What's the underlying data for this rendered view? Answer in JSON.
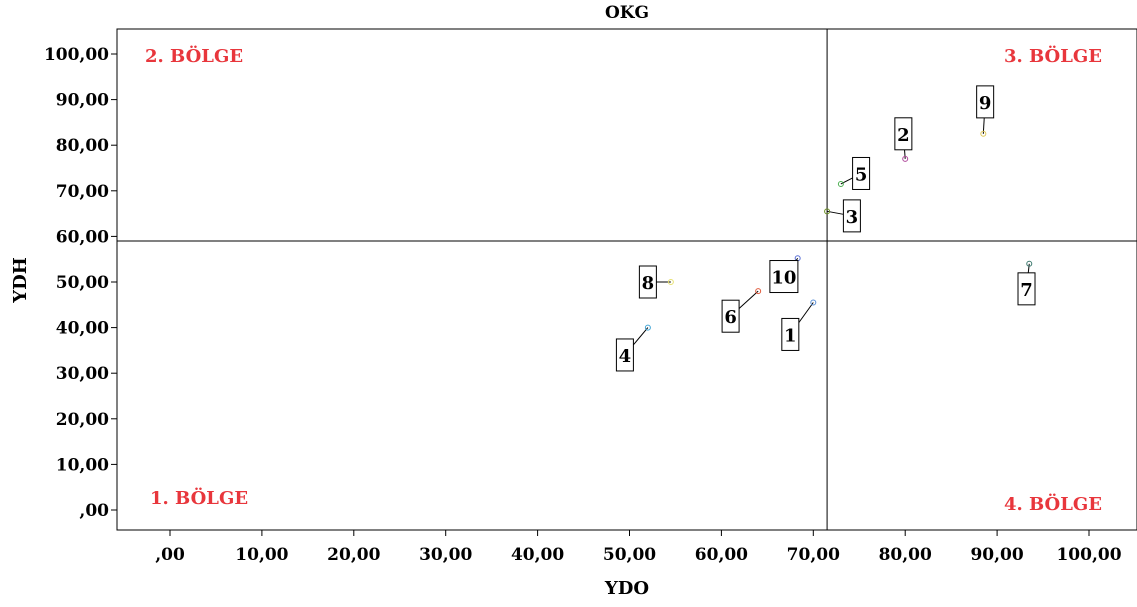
{
  "chart_data": {
    "type": "scatter",
    "title": "OKG",
    "xlabel": "YDO",
    "ylabel": "YDH",
    "xlim": [
      -5,
      105
    ],
    "ylim": [
      -5,
      105
    ],
    "x_ticks": [
      0,
      10,
      20,
      30,
      40,
      50,
      60,
      70,
      80,
      90,
      100
    ],
    "y_ticks": [
      0,
      10,
      20,
      30,
      40,
      50,
      60,
      70,
      80,
      90,
      100
    ],
    "x_tick_labels": [
      ",00",
      "10,00",
      "20,00",
      "30,00",
      "40,00",
      "50,00",
      "60,00",
      "70,00",
      "80,00",
      "90,00",
      "100,00"
    ],
    "y_tick_labels": [
      ",00",
      "10,00",
      "20,00",
      "30,00",
      "40,00",
      "50,00",
      "60,00",
      "70,00",
      "80,00",
      "90,00",
      "100,00"
    ],
    "reference_lines": {
      "x": 71.5,
      "y": 59
    },
    "regions": [
      {
        "label": "1. BÖLGE",
        "position": "bottom-left"
      },
      {
        "label": "2. BÖLGE",
        "position": "top-left"
      },
      {
        "label": "3. BÖLGE",
        "position": "top-right"
      },
      {
        "label": "4. BÖLGE",
        "position": "bottom-right"
      }
    ],
    "points": [
      {
        "label": "1",
        "x": 70,
        "y": 45.5,
        "color": "#5a8fd6",
        "label_dx": -2.5,
        "label_dy": -7
      },
      {
        "label": "2",
        "x": 80,
        "y": 77,
        "color": "#b04a9c",
        "label_dx": -0.2,
        "label_dy": 5.5
      },
      {
        "label": "3",
        "x": 71.5,
        "y": 65.5,
        "color": "#6b8e23",
        "label_dx": 2.7,
        "label_dy": -1
      },
      {
        "label": "4",
        "x": 52,
        "y": 40,
        "color": "#42a5d6",
        "label_dx": -2.5,
        "label_dy": -6
      },
      {
        "label": "5",
        "x": 73,
        "y": 71.5,
        "color": "#4caf50",
        "label_dx": 2.2,
        "label_dy": 2.3
      },
      {
        "label": "6",
        "x": 64,
        "y": 48,
        "color": "#e05a3c",
        "label_dx": -3,
        "label_dy": -5.5
      },
      {
        "label": "7",
        "x": 93.5,
        "y": 54,
        "color": "#3d7a6f",
        "label_dx": -0.3,
        "label_dy": -5.5
      },
      {
        "label": "8",
        "x": 54.5,
        "y": 50,
        "color": "#e6e070",
        "label_dx": -2.5,
        "label_dy": 0
      },
      {
        "label": "9",
        "x": 88.5,
        "y": 82.5,
        "color": "#e0c85a",
        "label_dx": 0.2,
        "label_dy": 7
      },
      {
        "label": "10",
        "x": 68.3,
        "y": 55.2,
        "color": "#5a6fd6",
        "label_dx": -1.5,
        "label_dy": -4
      }
    ]
  }
}
